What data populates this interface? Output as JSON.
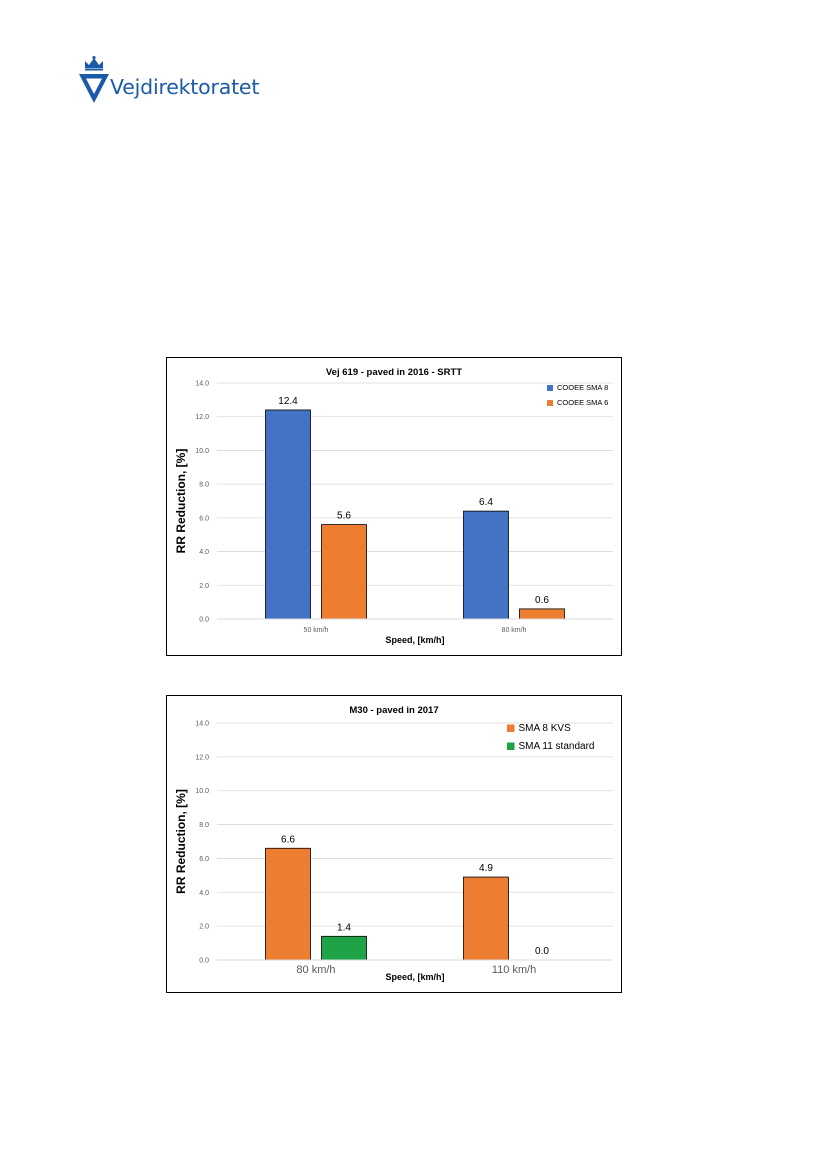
{
  "header": {
    "logo_text": "Vejdirektoratet",
    "brand_color": "#1b5aa8"
  },
  "chart_data": [
    {
      "type": "bar",
      "title": "Vej 619 - paved in 2016 - SRTT",
      "xlabel": "Speed, [km/h]",
      "ylabel": "RR Reduction, [%]",
      "ylim": [
        0,
        14
      ],
      "yticks": [
        "0.0",
        "2.0",
        "4.0",
        "6.0",
        "8.0",
        "10.0",
        "12.0",
        "14.0"
      ],
      "categories": [
        "50 km/h",
        "80 km/h"
      ],
      "series": [
        {
          "name": "COOEE SMA 8",
          "color": "#4472c4",
          "values": [
            12.4,
            6.4
          ],
          "labels": [
            "12.4",
            "6.4"
          ]
        },
        {
          "name": "COOEE SMA 6",
          "color": "#ed7d31",
          "values": [
            5.6,
            0.6
          ],
          "labels": [
            "5.6",
            "0.6"
          ]
        }
      ],
      "grid": true,
      "legend": "top-right"
    },
    {
      "type": "bar",
      "title": "M30 - paved in 2017",
      "xlabel": "Speed, [km/h]",
      "ylabel": "RR Reduction, [%]",
      "ylim": [
        0,
        14
      ],
      "yticks": [
        "0.0",
        "2.0",
        "4.0",
        "6.0",
        "8.0",
        "10.0",
        "12.0",
        "14.0"
      ],
      "categories": [
        "80 km/h",
        "110 km/h"
      ],
      "series": [
        {
          "name": "SMA 8 KVS",
          "color": "#ed7d31",
          "values": [
            6.6,
            4.9
          ],
          "labels": [
            "6.6",
            "4.9"
          ]
        },
        {
          "name": "SMA 11 standard",
          "color": "#1fa347",
          "values": [
            1.4,
            0.0
          ],
          "labels": [
            "1.4",
            "0.0"
          ]
        }
      ],
      "grid": true,
      "legend": "top-right"
    }
  ]
}
